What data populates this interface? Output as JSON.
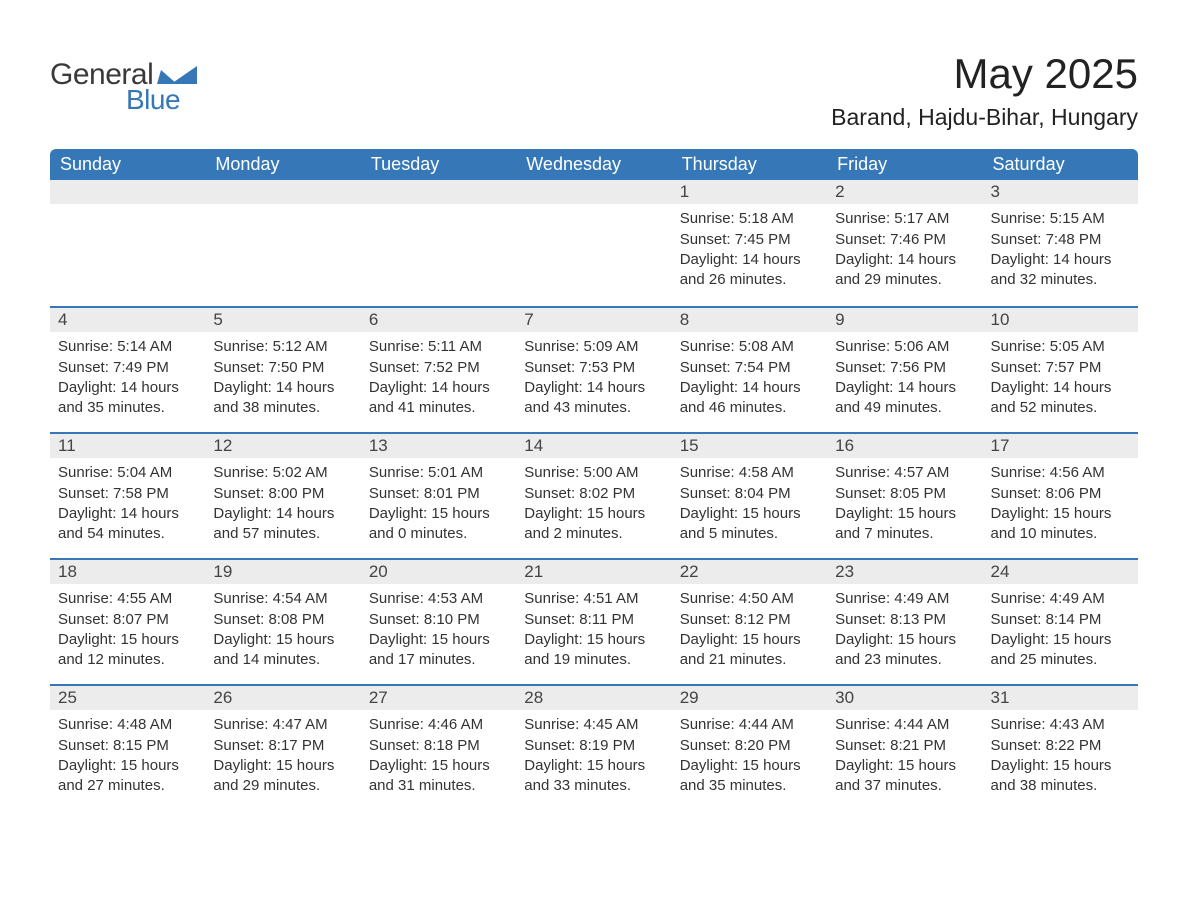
{
  "logo": {
    "text_general": "General",
    "text_blue": "Blue",
    "mark_color": "#3678b7"
  },
  "title": {
    "month": "May 2025",
    "location": "Barand, Hajdu-Bihar, Hungary"
  },
  "colors": {
    "header_bg": "#3678b7",
    "header_text": "#ffffff",
    "daynum_bg": "#ececec",
    "day_border": "#3678b7",
    "body_text": "#333333"
  },
  "columns": [
    "Sunday",
    "Monday",
    "Tuesday",
    "Wednesday",
    "Thursday",
    "Friday",
    "Saturday"
  ],
  "weeks": [
    [
      null,
      null,
      null,
      null,
      {
        "n": "1",
        "sunrise": "Sunrise: 5:18 AM",
        "sunset": "Sunset: 7:45 PM",
        "day": "Daylight: 14 hours and 26 minutes."
      },
      {
        "n": "2",
        "sunrise": "Sunrise: 5:17 AM",
        "sunset": "Sunset: 7:46 PM",
        "day": "Daylight: 14 hours and 29 minutes."
      },
      {
        "n": "3",
        "sunrise": "Sunrise: 5:15 AM",
        "sunset": "Sunset: 7:48 PM",
        "day": "Daylight: 14 hours and 32 minutes."
      }
    ],
    [
      {
        "n": "4",
        "sunrise": "Sunrise: 5:14 AM",
        "sunset": "Sunset: 7:49 PM",
        "day": "Daylight: 14 hours and 35 minutes."
      },
      {
        "n": "5",
        "sunrise": "Sunrise: 5:12 AM",
        "sunset": "Sunset: 7:50 PM",
        "day": "Daylight: 14 hours and 38 minutes."
      },
      {
        "n": "6",
        "sunrise": "Sunrise: 5:11 AM",
        "sunset": "Sunset: 7:52 PM",
        "day": "Daylight: 14 hours and 41 minutes."
      },
      {
        "n": "7",
        "sunrise": "Sunrise: 5:09 AM",
        "sunset": "Sunset: 7:53 PM",
        "day": "Daylight: 14 hours and 43 minutes."
      },
      {
        "n": "8",
        "sunrise": "Sunrise: 5:08 AM",
        "sunset": "Sunset: 7:54 PM",
        "day": "Daylight: 14 hours and 46 minutes."
      },
      {
        "n": "9",
        "sunrise": "Sunrise: 5:06 AM",
        "sunset": "Sunset: 7:56 PM",
        "day": "Daylight: 14 hours and 49 minutes."
      },
      {
        "n": "10",
        "sunrise": "Sunrise: 5:05 AM",
        "sunset": "Sunset: 7:57 PM",
        "day": "Daylight: 14 hours and 52 minutes."
      }
    ],
    [
      {
        "n": "11",
        "sunrise": "Sunrise: 5:04 AM",
        "sunset": "Sunset: 7:58 PM",
        "day": "Daylight: 14 hours and 54 minutes."
      },
      {
        "n": "12",
        "sunrise": "Sunrise: 5:02 AM",
        "sunset": "Sunset: 8:00 PM",
        "day": "Daylight: 14 hours and 57 minutes."
      },
      {
        "n": "13",
        "sunrise": "Sunrise: 5:01 AM",
        "sunset": "Sunset: 8:01 PM",
        "day": "Daylight: 15 hours and 0 minutes."
      },
      {
        "n": "14",
        "sunrise": "Sunrise: 5:00 AM",
        "sunset": "Sunset: 8:02 PM",
        "day": "Daylight: 15 hours and 2 minutes."
      },
      {
        "n": "15",
        "sunrise": "Sunrise: 4:58 AM",
        "sunset": "Sunset: 8:04 PM",
        "day": "Daylight: 15 hours and 5 minutes."
      },
      {
        "n": "16",
        "sunrise": "Sunrise: 4:57 AM",
        "sunset": "Sunset: 8:05 PM",
        "day": "Daylight: 15 hours and 7 minutes."
      },
      {
        "n": "17",
        "sunrise": "Sunrise: 4:56 AM",
        "sunset": "Sunset: 8:06 PM",
        "day": "Daylight: 15 hours and 10 minutes."
      }
    ],
    [
      {
        "n": "18",
        "sunrise": "Sunrise: 4:55 AM",
        "sunset": "Sunset: 8:07 PM",
        "day": "Daylight: 15 hours and 12 minutes."
      },
      {
        "n": "19",
        "sunrise": "Sunrise: 4:54 AM",
        "sunset": "Sunset: 8:08 PM",
        "day": "Daylight: 15 hours and 14 minutes."
      },
      {
        "n": "20",
        "sunrise": "Sunrise: 4:53 AM",
        "sunset": "Sunset: 8:10 PM",
        "day": "Daylight: 15 hours and 17 minutes."
      },
      {
        "n": "21",
        "sunrise": "Sunrise: 4:51 AM",
        "sunset": "Sunset: 8:11 PM",
        "day": "Daylight: 15 hours and 19 minutes."
      },
      {
        "n": "22",
        "sunrise": "Sunrise: 4:50 AM",
        "sunset": "Sunset: 8:12 PM",
        "day": "Daylight: 15 hours and 21 minutes."
      },
      {
        "n": "23",
        "sunrise": "Sunrise: 4:49 AM",
        "sunset": "Sunset: 8:13 PM",
        "day": "Daylight: 15 hours and 23 minutes."
      },
      {
        "n": "24",
        "sunrise": "Sunrise: 4:49 AM",
        "sunset": "Sunset: 8:14 PM",
        "day": "Daylight: 15 hours and 25 minutes."
      }
    ],
    [
      {
        "n": "25",
        "sunrise": "Sunrise: 4:48 AM",
        "sunset": "Sunset: 8:15 PM",
        "day": "Daylight: 15 hours and 27 minutes."
      },
      {
        "n": "26",
        "sunrise": "Sunrise: 4:47 AM",
        "sunset": "Sunset: 8:17 PM",
        "day": "Daylight: 15 hours and 29 minutes."
      },
      {
        "n": "27",
        "sunrise": "Sunrise: 4:46 AM",
        "sunset": "Sunset: 8:18 PM",
        "day": "Daylight: 15 hours and 31 minutes."
      },
      {
        "n": "28",
        "sunrise": "Sunrise: 4:45 AM",
        "sunset": "Sunset: 8:19 PM",
        "day": "Daylight: 15 hours and 33 minutes."
      },
      {
        "n": "29",
        "sunrise": "Sunrise: 4:44 AM",
        "sunset": "Sunset: 8:20 PM",
        "day": "Daylight: 15 hours and 35 minutes."
      },
      {
        "n": "30",
        "sunrise": "Sunrise: 4:44 AM",
        "sunset": "Sunset: 8:21 PM",
        "day": "Daylight: 15 hours and 37 minutes."
      },
      {
        "n": "31",
        "sunrise": "Sunrise: 4:43 AM",
        "sunset": "Sunset: 8:22 PM",
        "day": "Daylight: 15 hours and 38 minutes."
      }
    ]
  ]
}
